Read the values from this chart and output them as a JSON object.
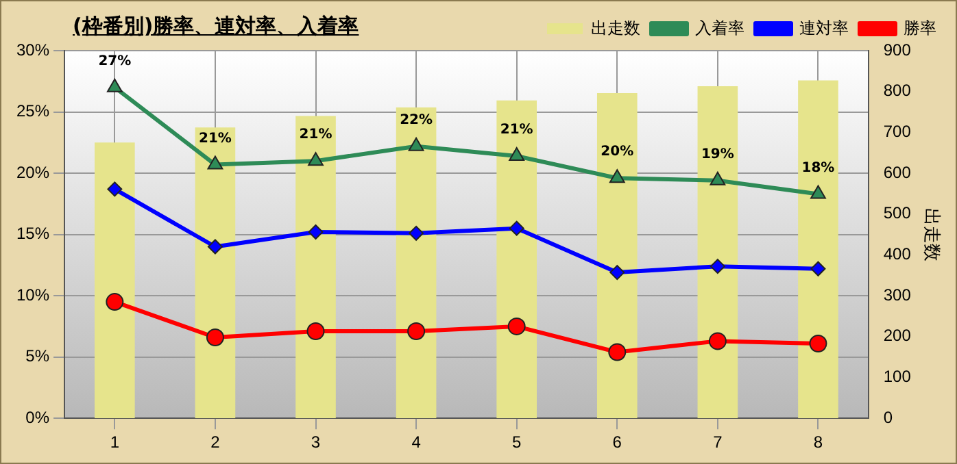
{
  "chart_data": {
    "type": "line",
    "title": "(枠番別)勝率、連対率、入着率",
    "y2label": "出走数",
    "categories": [
      "1",
      "2",
      "3",
      "4",
      "5",
      "6",
      "7",
      "8"
    ],
    "series": [
      {
        "name": "出走数",
        "type": "bar",
        "axis": "y2",
        "color": "#e6e48c",
        "values": [
          675,
          712,
          740,
          761,
          778,
          796,
          813,
          827
        ]
      },
      {
        "name": "入着率",
        "color": "#2e8b57",
        "marker": "triangle",
        "values": [
          27.0,
          20.7,
          21.0,
          22.2,
          21.4,
          19.6,
          19.4,
          18.3
        ],
        "value_labels": [
          "27%",
          "21%",
          "21%",
          "22%",
          "21%",
          "20%",
          "19%",
          "18%"
        ]
      },
      {
        "name": "連対率",
        "color": "#0000ff",
        "marker": "diamond",
        "values": [
          18.7,
          14.0,
          15.2,
          15.1,
          15.5,
          11.9,
          12.4,
          12.2
        ]
      },
      {
        "name": "勝率",
        "color": "#ff0000",
        "marker": "circle",
        "values": [
          9.5,
          6.6,
          7.1,
          7.1,
          7.5,
          5.4,
          6.3,
          6.1
        ]
      }
    ],
    "ylim": [
      0,
      30
    ],
    "yticks": [
      {
        "value": 0,
        "label": "0%"
      },
      {
        "value": 5,
        "label": "5%"
      },
      {
        "value": 10,
        "label": "10%"
      },
      {
        "value": 15,
        "label": "15%"
      },
      {
        "value": 20,
        "label": "20%"
      },
      {
        "value": 25,
        "label": "25%"
      },
      {
        "value": 30,
        "label": "30%"
      }
    ],
    "y2lim": [
      0,
      900
    ],
    "y2ticks": [
      0,
      100,
      200,
      300,
      400,
      500,
      600,
      700,
      800,
      900
    ],
    "grid": true,
    "legend": "top right"
  }
}
